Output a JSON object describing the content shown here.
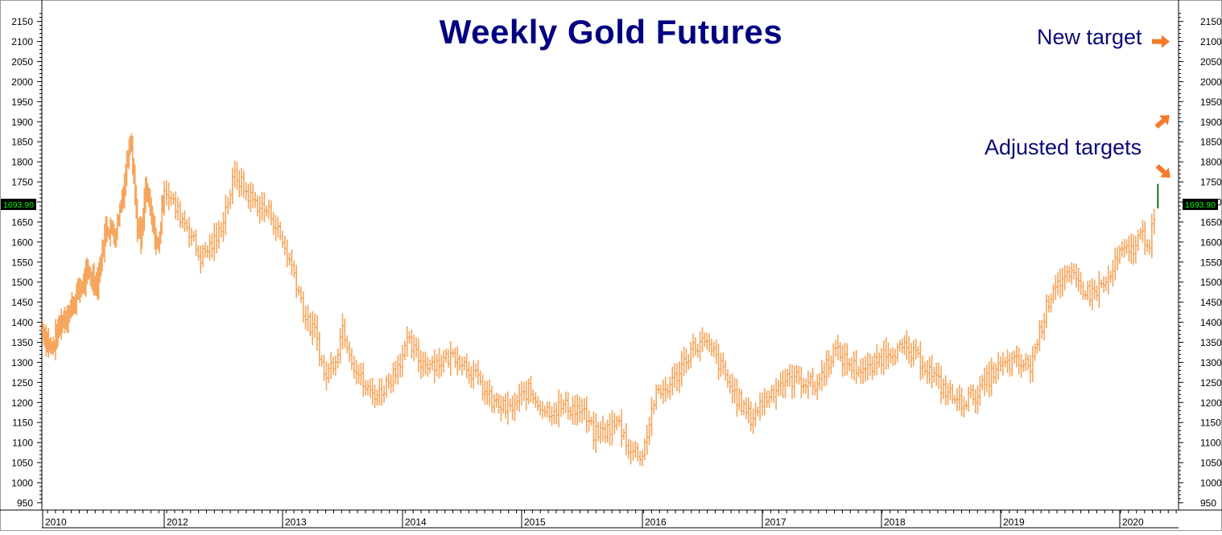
{
  "colors": {
    "bars": "#F5A55C",
    "title": "#000080",
    "annotation": "#0A0A78",
    "arrow": "#F47A2A",
    "last_bar": "#1E6B1E",
    "price_box_bg": "#000000",
    "price_box_text": "#00FF00",
    "axis": "#000000"
  },
  "chart_data": {
    "type": "ohlc",
    "title": "Weekly Gold Futures",
    "xlabel": "",
    "ylabel": "",
    "ylim": [
      925,
      2175
    ],
    "y_ticks": [
      950,
      1000,
      1050,
      1100,
      1150,
      1200,
      1250,
      1300,
      1350,
      1400,
      1450,
      1500,
      1550,
      1600,
      1650,
      1700,
      1750,
      1800,
      1850,
      1900,
      1950,
      2000,
      2050,
      2100,
      2150
    ],
    "x_range": [
      2010.0,
      2020.5
    ],
    "x_ticks": [
      2010,
      2012,
      2013,
      2014,
      2015,
      2016,
      2017,
      2018,
      2019,
      2020
    ],
    "x_tick_labels": [
      "2010",
      "2012",
      "2013",
      "2014",
      "2015",
      "2016",
      "2017",
      "2018",
      "2019",
      "2020"
    ],
    "grid": false,
    "last_price": "1693.90",
    "annotations": [
      {
        "text": "New target",
        "value": 2100,
        "arrow": "right-icon"
      },
      {
        "text": "Adjusted targets",
        "value": 1830,
        "arrow_up": "up-right-icon",
        "arrow_down": "down-right-icon"
      }
    ],
    "series": [
      {
        "x": [
          2010.0,
          2010.15,
          2010.3,
          2010.45,
          2010.6,
          2010.75,
          2010.9,
          2011.05,
          2011.2,
          2011.35,
          2011.45,
          2011.55,
          2011.62,
          2011.7,
          2011.8,
          2011.9,
          2012.0,
          2012.1,
          2012.2,
          2012.3,
          2012.45,
          2012.6,
          2012.7,
          2012.8,
          2012.9,
          2013.0,
          2013.1,
          2013.2,
          2013.28,
          2013.35,
          2013.45,
          2013.5,
          2013.6,
          2013.7,
          2013.8,
          2013.9,
          2014.05,
          2014.15,
          2014.3,
          2014.45,
          2014.6,
          2014.75,
          2014.9,
          2015.05,
          2015.2,
          2015.35,
          2015.5,
          2015.6,
          2015.7,
          2015.8,
          2015.9,
          2016.0,
          2016.1,
          2016.25,
          2016.4,
          2016.5,
          2016.6,
          2016.75,
          2016.9,
          2017.0,
          2017.15,
          2017.3,
          2017.45,
          2017.6,
          2017.75,
          2017.9,
          2018.05,
          2018.2,
          2018.35,
          2018.5,
          2018.65,
          2018.8,
          2018.95,
          2019.1,
          2019.25,
          2019.35,
          2019.45,
          2019.6,
          2019.75,
          2019.9,
          2020.0,
          2020.1,
          2020.18,
          2020.25,
          2020.32
        ],
        "values": [
          1380,
          1330,
          1400,
          1430,
          1480,
          1520,
          1500,
          1640,
          1620,
          1750,
          1880,
          1650,
          1600,
          1740,
          1650,
          1580,
          1740,
          1680,
          1640,
          1560,
          1610,
          1770,
          1720,
          1690,
          1670,
          1600,
          1520,
          1400,
          1370,
          1260,
          1320,
          1390,
          1290,
          1230,
          1220,
          1260,
          1350,
          1300,
          1300,
          1320,
          1270,
          1200,
          1180,
          1230,
          1180,
          1190,
          1180,
          1120,
          1130,
          1150,
          1080,
          1070,
          1210,
          1250,
          1330,
          1350,
          1320,
          1230,
          1160,
          1200,
          1250,
          1260,
          1240,
          1330,
          1290,
          1280,
          1330,
          1330,
          1300,
          1240,
          1200,
          1220,
          1280,
          1300,
          1290,
          1400,
          1500,
          1510,
          1470,
          1500,
          1570,
          1580,
          1620,
          1600,
          1693.9
        ]
      }
    ]
  }
}
